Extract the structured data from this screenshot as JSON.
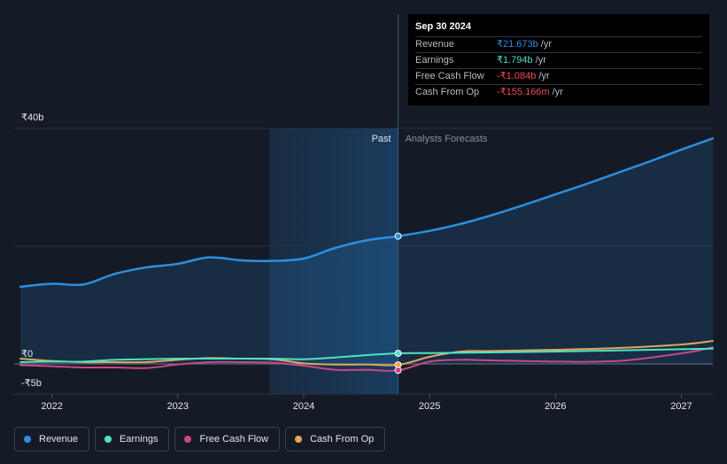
{
  "tooltip": {
    "date": "Sep 30 2024",
    "rows": [
      {
        "label": "Revenue",
        "value": "₹21.673b",
        "unit": "/yr",
        "color": "#2b8fe0"
      },
      {
        "label": "Earnings",
        "value": "₹1.794b",
        "unit": "/yr",
        "color": "#4de3c5"
      },
      {
        "label": "Free Cash Flow",
        "value": "-₹1.084b",
        "unit": "/yr",
        "color": "#ef4b5b"
      },
      {
        "label": "Cash From Op",
        "value": "-₹155.166m",
        "unit": "/yr",
        "color": "#ef4b5b"
      }
    ]
  },
  "legend": [
    {
      "label": "Revenue",
      "color": "#2b8fe0"
    },
    {
      "label": "Earnings",
      "color": "#4de3c5"
    },
    {
      "label": "Free Cash Flow",
      "color": "#c9478a"
    },
    {
      "label": "Cash From Op",
      "color": "#e5a55a"
    }
  ],
  "chart_data": {
    "type": "line",
    "title": "",
    "xlabel": "",
    "ylabel": "",
    "y_tick_labels": [
      "₹40b",
      "₹0",
      "-₹5b"
    ],
    "y_ticks": [
      40,
      0,
      -5
    ],
    "ylim": [
      -5,
      40
    ],
    "xlim": [
      2021.7,
      2027.25
    ],
    "x_tick_labels": [
      "2022",
      "2023",
      "2024",
      "2025",
      "2026",
      "2027"
    ],
    "x_ticks": [
      2022,
      2023,
      2024,
      2025,
      2026,
      2027
    ],
    "past_label": "Past",
    "forecast_label": "Analysts Forecasts",
    "past_region_start": 2023.73,
    "divider_x": 2024.75,
    "series": [
      {
        "name": "Revenue",
        "color": "#2b8fe0",
        "fill": true,
        "x": [
          2021.75,
          2022.0,
          2022.25,
          2022.5,
          2022.75,
          2023.0,
          2023.25,
          2023.5,
          2023.75,
          2024.0,
          2024.25,
          2024.5,
          2024.75,
          2025.0,
          2025.25,
          2025.5,
          2025.75,
          2026.0,
          2026.25,
          2026.5,
          2026.75,
          2027.0,
          2027.25
        ],
        "y": [
          13.1,
          13.6,
          13.5,
          15.3,
          16.4,
          17.0,
          18.1,
          17.6,
          17.5,
          17.9,
          19.7,
          21.0,
          21.7,
          22.6,
          23.8,
          25.3,
          27.0,
          28.8,
          30.6,
          32.5,
          34.4,
          36.4,
          38.3
        ]
      },
      {
        "name": "Earnings",
        "color": "#4de3c5",
        "fill": false,
        "x": [
          2021.75,
          2022.0,
          2022.25,
          2022.5,
          2022.75,
          2023.0,
          2023.25,
          2023.5,
          2023.75,
          2024.0,
          2024.25,
          2024.5,
          2024.75,
          2025.0,
          2025.5,
          2026.0,
          2026.5,
          2027.0,
          2027.25
        ],
        "y": [
          0.3,
          0.4,
          0.4,
          0.7,
          0.8,
          0.9,
          0.9,
          0.9,
          0.9,
          0.8,
          1.1,
          1.5,
          1.8,
          1.85,
          1.95,
          2.1,
          2.3,
          2.5,
          2.6
        ]
      },
      {
        "name": "Free Cash Flow",
        "color": "#c9478a",
        "fill": false,
        "x": [
          2021.75,
          2022.0,
          2022.25,
          2022.5,
          2022.75,
          2023.0,
          2023.25,
          2023.5,
          2023.75,
          2024.0,
          2024.25,
          2024.5,
          2024.75,
          2025.0,
          2025.25,
          2025.5,
          2026.0,
          2026.5,
          2027.0,
          2027.25
        ],
        "y": [
          -0.2,
          -0.4,
          -0.6,
          -0.6,
          -0.7,
          -0.1,
          0.3,
          0.3,
          0.2,
          -0.3,
          -1.0,
          -1.0,
          -1.08,
          0.4,
          0.7,
          0.6,
          0.4,
          0.5,
          1.8,
          2.8
        ]
      },
      {
        "name": "Cash From Op",
        "color": "#e5a55a",
        "fill": false,
        "x": [
          2021.75,
          2022.0,
          2022.25,
          2022.5,
          2022.75,
          2023.0,
          2023.25,
          2023.5,
          2023.75,
          2024.0,
          2024.25,
          2024.5,
          2024.75,
          2025.0,
          2025.25,
          2025.5,
          2026.0,
          2026.5,
          2027.0,
          2027.25
        ],
        "y": [
          0.9,
          0.5,
          0.3,
          0.3,
          0.3,
          0.7,
          1.0,
          0.9,
          0.8,
          0.1,
          -0.1,
          -0.1,
          -0.16,
          1.2,
          2.1,
          2.2,
          2.4,
          2.7,
          3.3,
          3.9
        ]
      }
    ]
  }
}
